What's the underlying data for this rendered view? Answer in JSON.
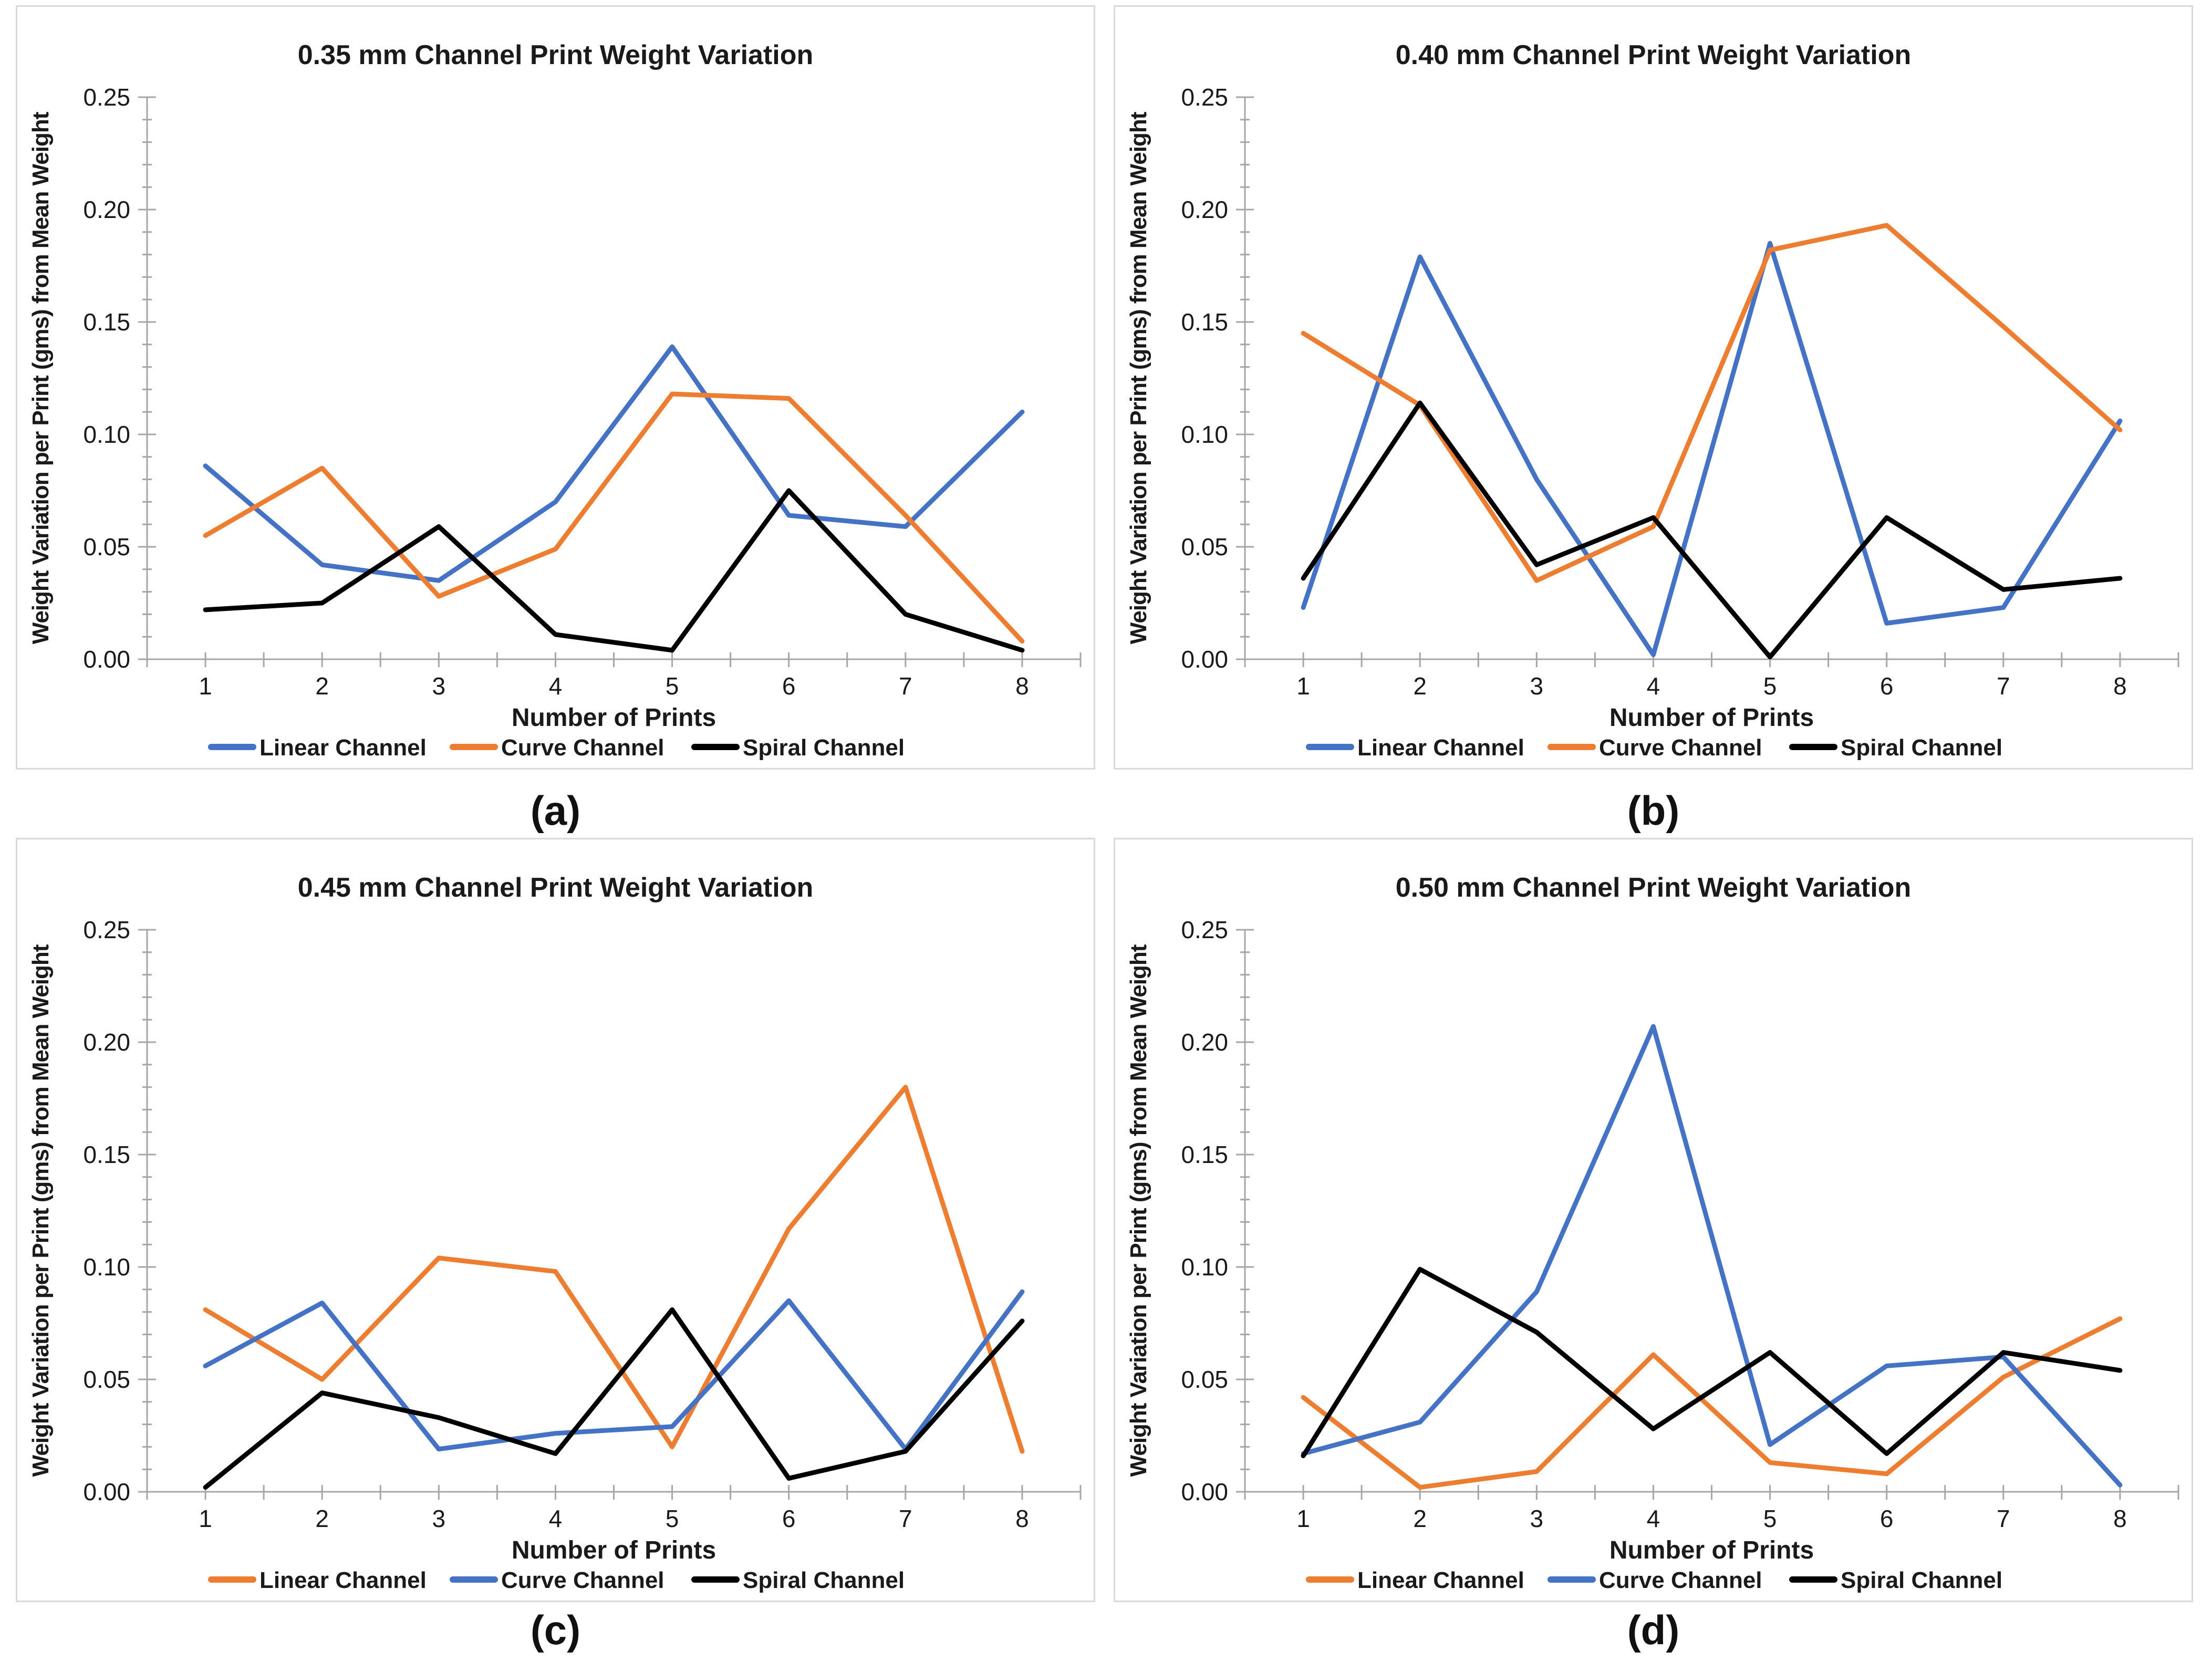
{
  "figure": {
    "background": "#ffffff",
    "panel_border_color": "#d9d9d9",
    "axis_color": "#a6a6a6",
    "text_color": "#1a1a1a",
    "caption_color": "#111111"
  },
  "axes": {
    "x_title": "Number of Prints",
    "y_title": "Weight Variation per Print (gms) from Mean Weight",
    "x_labels": [
      "1",
      "2",
      "3",
      "4",
      "5",
      "6",
      "7",
      "8"
    ],
    "y_tick_labels": [
      "0.00",
      "0.05",
      "0.10",
      "0.15",
      "0.20",
      "0.25"
    ],
    "y_min": 0,
    "y_max": 0.25,
    "y_major_step": 0.05,
    "y_minor_step": 0.01
  },
  "chart_data": [
    {
      "type": "line",
      "panel_label": "(a)",
      "title": "0.35 mm Channel Print Weight Variation",
      "x": [
        1,
        2,
        3,
        4,
        5,
        6,
        7,
        8
      ],
      "xlabel": "Number of Prints",
      "ylabel": "Weight Variation per Print (gms) from Mean Weight",
      "ylim": [
        0,
        0.25
      ],
      "grid": false,
      "legend_position": "bottom",
      "series": [
        {
          "name": "Linear Channel",
          "color": "#4472C4",
          "values": [
            0.086,
            0.042,
            0.035,
            0.07,
            0.139,
            0.064,
            0.059,
            0.11
          ]
        },
        {
          "name": "Curve Channel",
          "color": "#ED7D31",
          "values": [
            0.055,
            0.085,
            0.028,
            0.049,
            0.118,
            0.116,
            0.064,
            0.008
          ]
        },
        {
          "name": "Spiral Channel",
          "color": "#000000",
          "values": [
            0.022,
            0.025,
            0.059,
            0.011,
            0.004,
            0.075,
            0.02,
            0.004
          ]
        }
      ]
    },
    {
      "type": "line",
      "panel_label": "(b)",
      "title": "0.40 mm Channel Print Weight Variation",
      "x": [
        1,
        2,
        3,
        4,
        5,
        6,
        7,
        8
      ],
      "xlabel": "Number of Prints",
      "ylabel": "Weight Variation per Print (gms) from Mean Weight",
      "ylim": [
        0,
        0.25
      ],
      "grid": false,
      "legend_position": "bottom",
      "series": [
        {
          "name": "Linear Channel",
          "color": "#4472C4",
          "values": [
            0.023,
            0.179,
            0.08,
            0.002,
            0.185,
            0.016,
            0.023,
            0.106
          ]
        },
        {
          "name": "Curve Channel",
          "color": "#ED7D31",
          "values": [
            0.145,
            0.113,
            0.035,
            0.059,
            0.182,
            0.193,
            0.148,
            0.102
          ]
        },
        {
          "name": "Spiral Channel",
          "color": "#000000",
          "values": [
            0.036,
            0.114,
            0.042,
            0.063,
            0.001,
            0.063,
            0.031,
            0.036
          ]
        }
      ]
    },
    {
      "type": "line",
      "panel_label": "(c)",
      "title": "0.45 mm Channel Print Weight Variation",
      "x": [
        1,
        2,
        3,
        4,
        5,
        6,
        7,
        8
      ],
      "xlabel": "Number of Prints",
      "ylabel": "Weight Variation per Print (gms) from Mean Weight",
      "ylim": [
        0,
        0.25
      ],
      "grid": false,
      "legend_position": "bottom",
      "series": [
        {
          "name": "Linear Channel",
          "color": "#ED7D31",
          "values": [
            0.081,
            0.05,
            0.104,
            0.098,
            0.02,
            0.117,
            0.18,
            0.018
          ]
        },
        {
          "name": "Curve Channel",
          "color": "#4472C4",
          "values": [
            0.056,
            0.084,
            0.019,
            0.026,
            0.029,
            0.085,
            0.019,
            0.089
          ]
        },
        {
          "name": "Spiral Channel",
          "color": "#000000",
          "values": [
            0.002,
            0.044,
            0.033,
            0.017,
            0.081,
            0.006,
            0.018,
            0.076
          ]
        }
      ]
    },
    {
      "type": "line",
      "panel_label": "(d)",
      "title": "0.50 mm Channel Print Weight Variation",
      "x": [
        1,
        2,
        3,
        4,
        5,
        6,
        7,
        8
      ],
      "xlabel": "Number of Prints",
      "ylabel": "Weight Variation per Print (gms) from Mean Weight",
      "ylim": [
        0,
        0.25
      ],
      "grid": false,
      "legend_position": "bottom",
      "series": [
        {
          "name": "Linear Channel",
          "color": "#ED7D31",
          "values": [
            0.042,
            0.002,
            0.009,
            0.061,
            0.013,
            0.008,
            0.051,
            0.077
          ]
        },
        {
          "name": "Curve Channel",
          "color": "#4472C4",
          "values": [
            0.017,
            0.031,
            0.089,
            0.207,
            0.021,
            0.056,
            0.06,
            0.003
          ]
        },
        {
          "name": "Spiral Channel",
          "color": "#000000",
          "values": [
            0.016,
            0.099,
            0.071,
            0.028,
            0.062,
            0.017,
            0.062,
            0.054
          ]
        }
      ]
    }
  ]
}
